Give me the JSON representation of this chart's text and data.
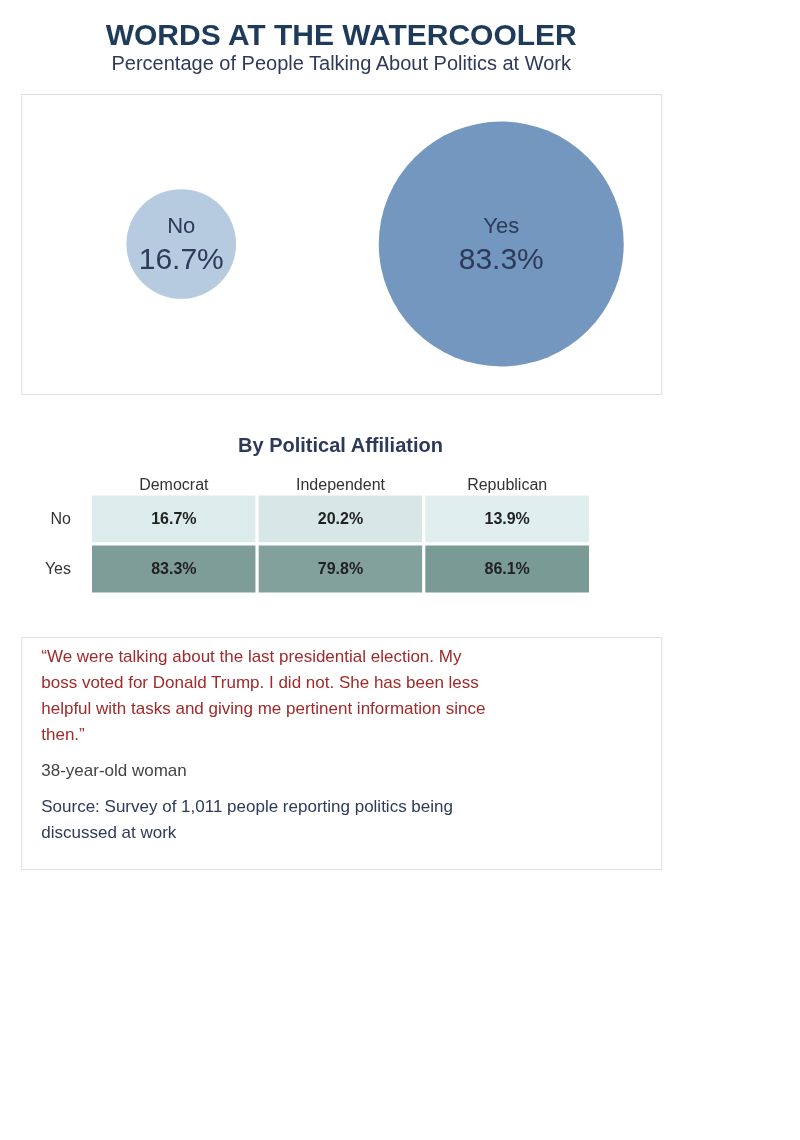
{
  "chart_data": [
    {
      "type": "other",
      "title": "WORDS AT THE WATERCOOLER",
      "subtitle": "Percentage of People Talking About Politics at Work",
      "categories": [
        "No",
        "Yes"
      ],
      "values": [
        16.7,
        83.3
      ],
      "value_labels": [
        "16.7%",
        "83.3%"
      ],
      "colors": [
        "#b7cbe0",
        "#7497bf"
      ]
    },
    {
      "type": "heatmap",
      "title": "By Political Affiliation",
      "categories": [
        "Democrat",
        "Independent",
        "Republican"
      ],
      "y_categories": [
        "No",
        "Yes"
      ],
      "cells": [
        [
          16.7,
          20.2,
          13.9
        ],
        [
          83.3,
          79.8,
          86.1
        ]
      ],
      "cell_labels": [
        [
          "16.7%",
          "20.2%",
          "13.9%"
        ],
        [
          "83.3%",
          "79.8%",
          "86.1%"
        ]
      ],
      "colors": [
        "#e0eeee",
        "#7a9a95"
      ]
    },
    {
      "type": "other",
      "annotations": [
        "“We were talking about the last presidential election. My boss voted for Donald Trump. I did not. She has been less helpful with tasks and giving me pertinent information since then.”",
        "38-year-old woman",
        "Source: Survey of 1,011 people reporting politics being discussed at work"
      ]
    }
  ]
}
